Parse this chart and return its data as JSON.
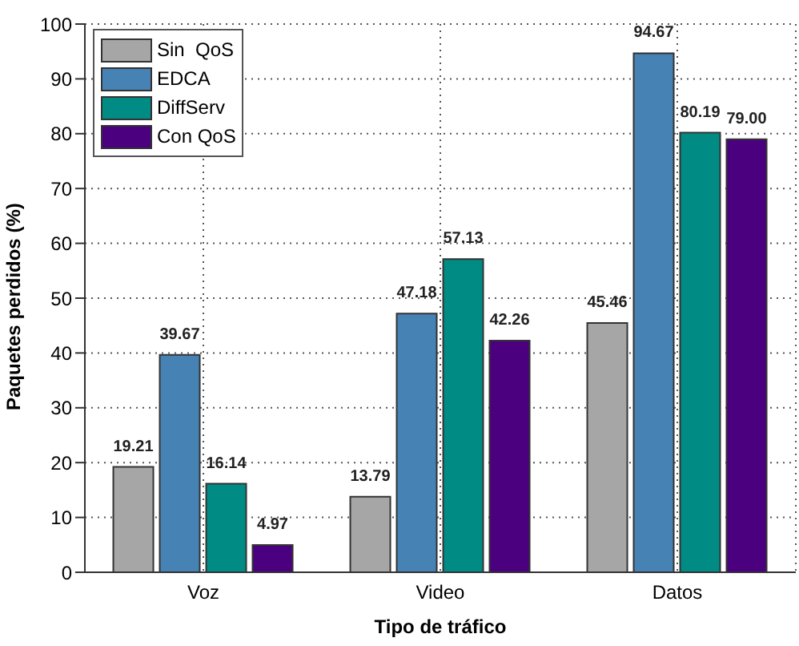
{
  "chart_data": {
    "type": "bar",
    "xlabel": "Tipo de tráfico",
    "ylabel": "Paquetes perdidos (%)",
    "categories": [
      "Voz",
      "Video",
      "Datos"
    ],
    "series": [
      {
        "name": "Sin  QoS",
        "color": "#a6a6a6",
        "values": [
          19.21,
          13.79,
          45.46
        ],
        "value_labels": [
          "19.21",
          "13.79",
          "45.46"
        ]
      },
      {
        "name": "EDCA",
        "color": "#4682b4",
        "values": [
          39.67,
          47.18,
          94.67
        ],
        "value_labels": [
          "39.67",
          "47.18",
          "94.67"
        ]
      },
      {
        "name": "DiffServ",
        "color": "#008b84",
        "values": [
          16.14,
          57.13,
          80.19
        ],
        "value_labels": [
          "16.14",
          "57.13",
          "80.19"
        ]
      },
      {
        "name": "Con QoS",
        "color": "#4b0080",
        "values": [
          4.97,
          42.26,
          79.0
        ],
        "value_labels": [
          "4.97",
          "42.26",
          "79.00"
        ]
      }
    ],
    "ylim": [
      0,
      100
    ],
    "yticks": [
      0,
      10,
      20,
      30,
      40,
      50,
      60,
      70,
      80,
      90,
      100
    ],
    "grid": true,
    "legend": "top left"
  }
}
